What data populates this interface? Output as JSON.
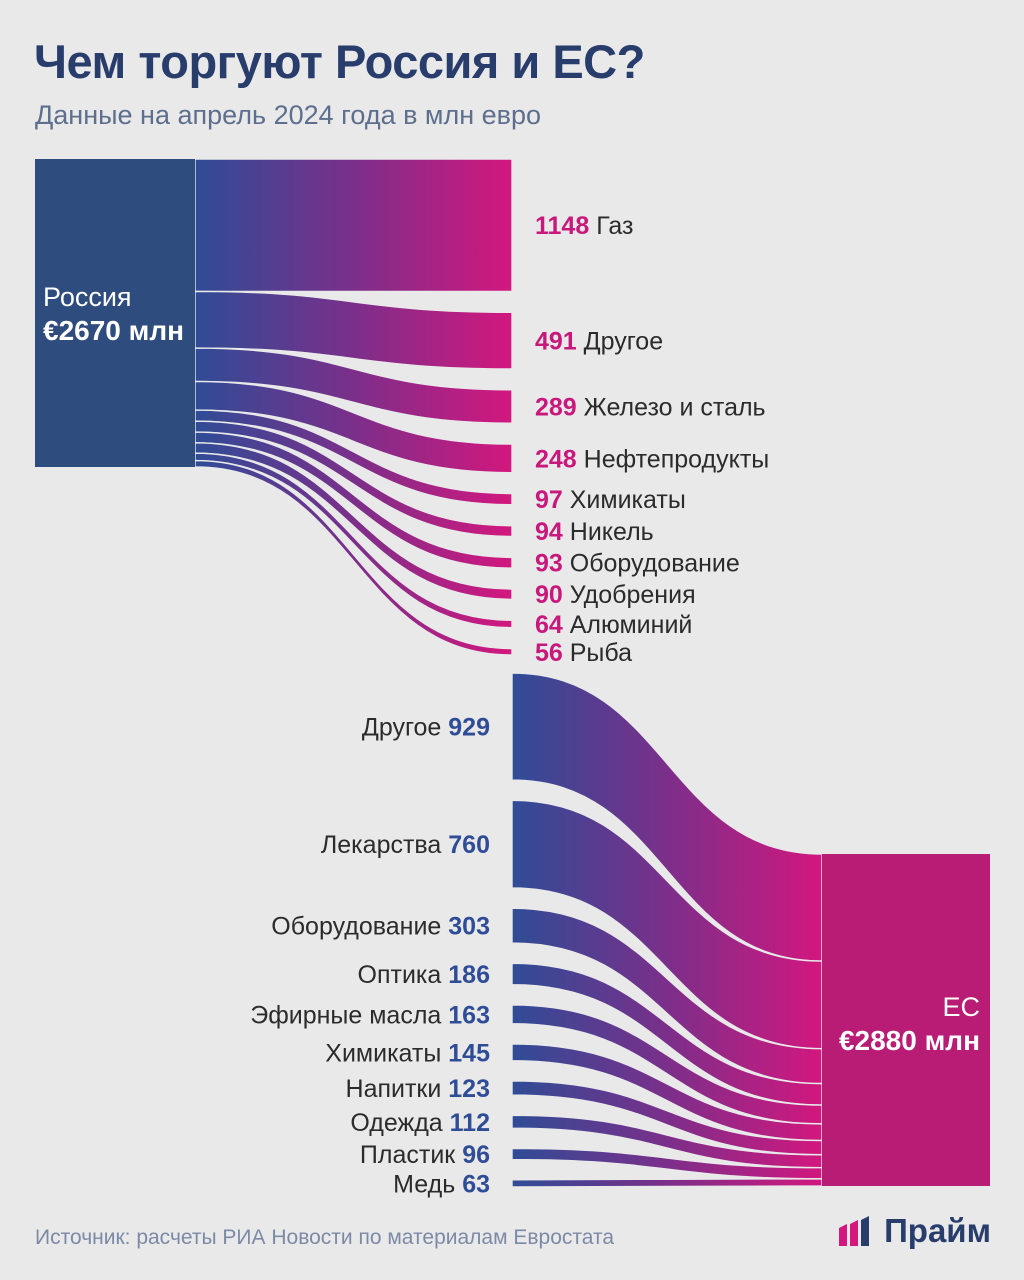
{
  "title": "Чем торгуют Россия и ЕС?",
  "subtitle": "Данные на апрель 2024 года в млн евро",
  "source": "Источник: расчеты РИА Новости по материалам Евростата",
  "logo": {
    "text": "Прайм",
    "icon": "bar-logo-icon"
  },
  "colors": {
    "blue": "#2f4c96",
    "magenta": "#d3177e",
    "title": "#283d6c",
    "background": "#e9e9ea"
  },
  "chart_data": [
    {
      "type": "sankey",
      "direction": "Россия → ЕС",
      "source_node": {
        "name": "Россия",
        "total_label": "€2670 млн",
        "total": 2670
      },
      "flows": [
        {
          "value": 1148,
          "label": "1148",
          "name": "Газ"
        },
        {
          "value": 491,
          "label": "491",
          "name": "Другое"
        },
        {
          "value": 289,
          "label": "289",
          "name": "Железо и сталь"
        },
        {
          "value": 248,
          "label": "248",
          "name": "Нефтепродукты"
        },
        {
          "value": 97,
          "label": "97",
          "name": "Химикаты"
        },
        {
          "value": 94,
          "label": "94",
          "name": "Никель"
        },
        {
          "value": 93,
          "label": "93",
          "name": "Оборудование"
        },
        {
          "value": 90,
          "label": "90",
          "name": "Удобрения"
        },
        {
          "value": 64,
          "label": "64",
          "name": "Алюминий"
        },
        {
          "value": 56,
          "label": "56",
          "name": "Рыба"
        }
      ]
    },
    {
      "type": "sankey",
      "direction": "ЕС → Россия",
      "target_node": {
        "name": "ЕС",
        "total_label": "€2880 млн",
        "total": 2880
      },
      "flows": [
        {
          "value": 929,
          "label": "929",
          "name": "Другое"
        },
        {
          "value": 760,
          "label": "760",
          "name": "Лекарства"
        },
        {
          "value": 303,
          "label": "303",
          "name": "Оборудование"
        },
        {
          "value": 186,
          "label": "186",
          "name": "Оптика"
        },
        {
          "value": 163,
          "label": "163",
          "name": "Эфирные масла"
        },
        {
          "value": 145,
          "label": "145",
          "name": "Химикаты"
        },
        {
          "value": 123,
          "label": "123",
          "name": "Напитки"
        },
        {
          "value": 112,
          "label": "112",
          "name": "Одежда"
        },
        {
          "value": 96,
          "label": "96",
          "name": "Пластик"
        },
        {
          "value": 63,
          "label": "63",
          "name": "Медь"
        }
      ]
    }
  ]
}
